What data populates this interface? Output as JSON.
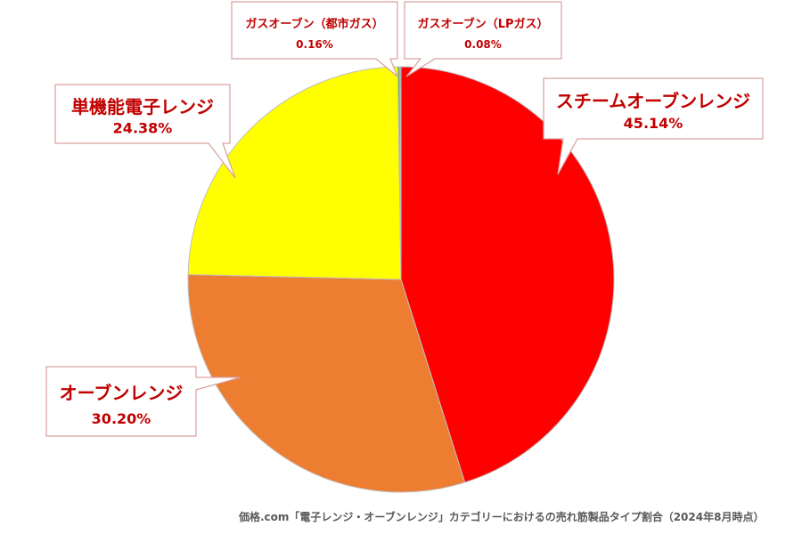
{
  "chart_data": {
    "type": "pie",
    "title": "",
    "slices": [
      {
        "label": "スチームオーブンレンジ",
        "value": 45.14,
        "value_label": "45.14%",
        "color": "#ff0000"
      },
      {
        "label": "オーブンレンジ",
        "value": 30.2,
        "value_label": "30.20%",
        "color": "#ed7d31"
      },
      {
        "label": "単機能電子レンジ",
        "value": 24.38,
        "value_label": "24.38%",
        "color": "#ffff00"
      },
      {
        "label": "ガスオーブン（都市ガス）",
        "value": 0.16,
        "value_label": "0.16%",
        "color": "#70ad47"
      },
      {
        "label": "ガスオーブン（LPガス）",
        "value": 0.08,
        "value_label": "0.08%",
        "color": "#4472c4"
      }
    ],
    "start": "12 o'clock",
    "direction": "clockwise",
    "label_text_color": "#c00000",
    "callout_border_color": "#d9a0a0",
    "slice_border_color": "#bfbfbf",
    "legend": "none"
  },
  "source_note": "価格.com「電子レンジ・オーブンレンジ」カテゴリーにおけるの売れ筋製品タイプ割合（2024年8月時点）"
}
